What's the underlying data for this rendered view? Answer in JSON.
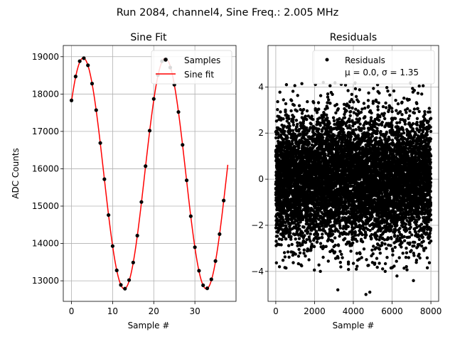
{
  "suptitle": "Run 2084, channel4, Sine Freq.: 2.005 MHz",
  "chart_data": [
    {
      "type": "scatter",
      "title": "Sine Fit",
      "xlabel": "Sample #",
      "ylabel": "ADC Counts",
      "xlim": [
        -2,
        40
      ],
      "ylim": [
        12450,
        19300
      ],
      "xticks": [
        0,
        10,
        20,
        30
      ],
      "yticks": [
        13000,
        14000,
        15000,
        16000,
        17000,
        18000,
        19000
      ],
      "grid": true,
      "legend": "top-right",
      "series": [
        {
          "name": "Samples",
          "kind": "scatter",
          "color": "#000000",
          "x": [
            0,
            1,
            2,
            3,
            4,
            5,
            6,
            7,
            8,
            9,
            10,
            11,
            12,
            13,
            14,
            15,
            16,
            17,
            18,
            19,
            20,
            21,
            22,
            23,
            24,
            25,
            26,
            27,
            28,
            29,
            30,
            31,
            32,
            33,
            34,
            35,
            36,
            37
          ],
          "y": [
            17830,
            18470,
            18880,
            18960,
            18770,
            18280,
            17570,
            16690,
            15720,
            14760,
            13930,
            13280,
            12890,
            12790,
            13020,
            13490,
            14210,
            15110,
            16070,
            17020,
            17870,
            18510,
            18880,
            18940,
            18710,
            18250,
            17520,
            16640,
            15690,
            14730,
            13900,
            13270,
            12880,
            12800,
            13040,
            13530,
            14250,
            15150
          ]
        },
        {
          "name": "Sine fit",
          "kind": "line",
          "color": "#ff0000",
          "amplitude": 3090,
          "offset": 15875,
          "period_samples": 19.95,
          "peak_sample": 2.85,
          "x_range": [
            0,
            38
          ]
        }
      ]
    },
    {
      "type": "scatter",
      "title": "Residuals",
      "xlabel": "Sample #",
      "ylabel": "",
      "xlim": [
        -400,
        8400
      ],
      "ylim": [
        -5.3,
        5.8
      ],
      "xticks": [
        0,
        2000,
        4000,
        6000,
        8000
      ],
      "yticks": [
        -4,
        -2,
        0,
        2,
        4
      ],
      "grid": true,
      "legend": "top-right",
      "series": [
        {
          "name": "Residuals",
          "kind": "scatter",
          "color": "#000000",
          "count": 8000,
          "mean": 0.0,
          "std": 1.35,
          "x_range": [
            0,
            8000
          ],
          "outlier_points": [
            [
              550,
              4.1
            ],
            [
              2450,
              4.2
            ],
            [
              5250,
              4.1
            ],
            [
              7600,
              4.05
            ],
            [
              3200,
              -4.8
            ],
            [
              4650,
              -5.0
            ],
            [
              4850,
              -4.9
            ],
            [
              6250,
              -4.2
            ],
            [
              2300,
              -4.0
            ],
            [
              7100,
              -4.4
            ]
          ]
        }
      ],
      "legend_note": "μ = 0.0, σ = 1.35"
    }
  ]
}
